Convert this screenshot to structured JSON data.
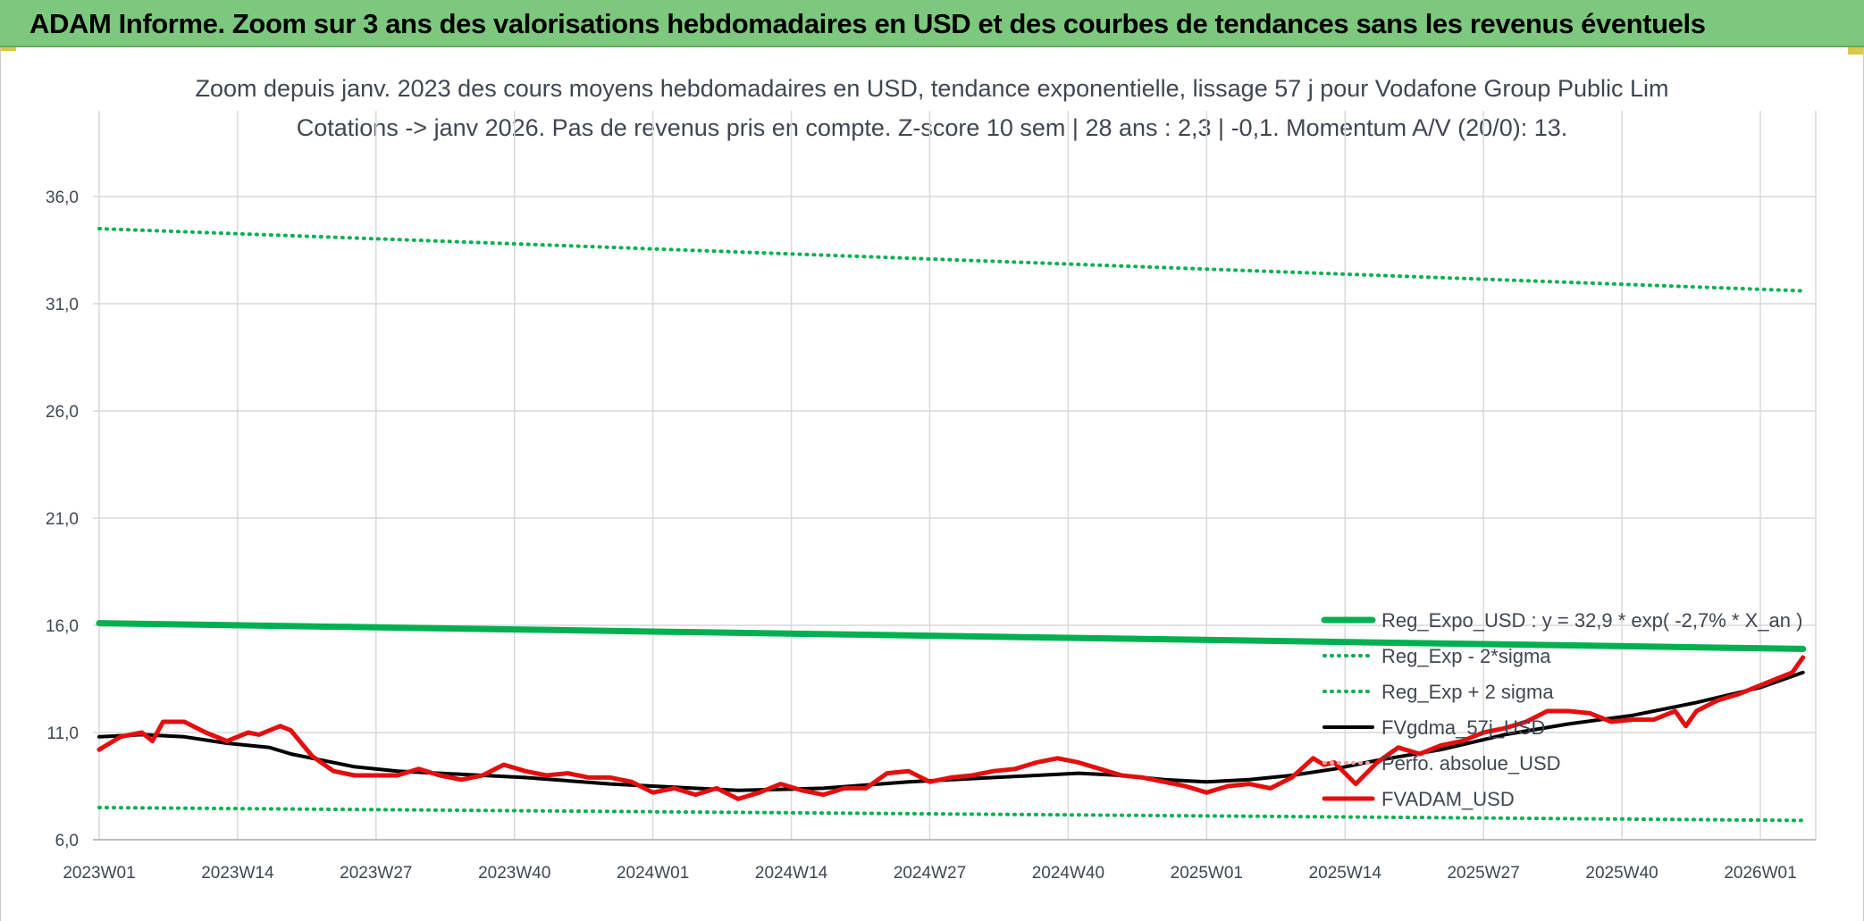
{
  "banner": {
    "title": "ADAM Informe. Zoom sur 3 ans des valorisations hebdomadaires en USD et des courbes de tendances sans les revenus éventuels"
  },
  "chart_data": {
    "type": "line",
    "title": "Zoom depuis janv. 2023 des cours moyens hebdomadaires en USD, tendance exponentielle, lissage 57 j pour Vodafone Group Public Lim",
    "subtitle": "Cotations -> janv 2026. Pas de revenus pris en compte. Z-score 10 sem | 28 ans : 2,3 | -0,1. Momentum A/V (20/0): 13.",
    "xlabel": "",
    "ylabel": "",
    "ylim": [
      6.0,
      38.0
    ],
    "y_ticks": [
      "6,0",
      "11,0",
      "16,0",
      "21,0",
      "26,0",
      "31,0",
      "36,0"
    ],
    "x_ticks": [
      {
        "week": 0,
        "label": "2023W01"
      },
      {
        "week": 13,
        "label": "2023W14"
      },
      {
        "week": 26,
        "label": "2023W27"
      },
      {
        "week": 39,
        "label": "2023W40"
      },
      {
        "week": 52,
        "label": "2024W01"
      },
      {
        "week": 65,
        "label": "2024W14"
      },
      {
        "week": 78,
        "label": "2024W27"
      },
      {
        "week": 91,
        "label": "2024W40"
      },
      {
        "week": 104,
        "label": "2025W01"
      },
      {
        "week": 117,
        "label": "2025W14"
      },
      {
        "week": 130,
        "label": "2025W27"
      },
      {
        "week": 143,
        "label": "2025W40"
      },
      {
        "week": 156,
        "label": "2026W01"
      }
    ],
    "x_range_weeks": [
      0,
      161
    ],
    "grid": true,
    "legend_position": "right-bottom",
    "series": [
      {
        "name": "Reg_Expo_USD : y = 32,9 * exp( -2,7% *  X_an )",
        "color": "#00b050",
        "style": "solid",
        "width": 7,
        "points": [
          [
            0,
            16.1
          ],
          [
            160,
            14.9
          ]
        ]
      },
      {
        "name": "Reg_Exp - 2*sigma",
        "color": "#00b050",
        "style": "dotted",
        "width": 4,
        "points": [
          [
            0,
            7.5
          ],
          [
            160,
            6.9
          ]
        ]
      },
      {
        "name": "Reg_Exp + 2 sigma",
        "color": "#00b050",
        "style": "dotted",
        "width": 4,
        "points": [
          [
            0,
            34.5
          ],
          [
            160,
            31.6
          ]
        ]
      },
      {
        "name": "FVgdma_57j_USD",
        "color": "#000000",
        "style": "solid",
        "width": 4,
        "points": [
          [
            0,
            10.8
          ],
          [
            4,
            10.9
          ],
          [
            8,
            10.8
          ],
          [
            12,
            10.5
          ],
          [
            16,
            10.3
          ],
          [
            18,
            10.0
          ],
          [
            20,
            9.8
          ],
          [
            24,
            9.4
          ],
          [
            28,
            9.2
          ],
          [
            32,
            9.1
          ],
          [
            40,
            8.9
          ],
          [
            48,
            8.6
          ],
          [
            52,
            8.5
          ],
          [
            60,
            8.3
          ],
          [
            68,
            8.4
          ],
          [
            76,
            8.7
          ],
          [
            84,
            8.9
          ],
          [
            88,
            9.0
          ],
          [
            92,
            9.1
          ],
          [
            96,
            9.0
          ],
          [
            100,
            8.8
          ],
          [
            104,
            8.7
          ],
          [
            108,
            8.8
          ],
          [
            112,
            9.0
          ],
          [
            116,
            9.3
          ],
          [
            120,
            9.7
          ],
          [
            126,
            10.2
          ],
          [
            132,
            10.9
          ],
          [
            138,
            11.4
          ],
          [
            144,
            11.8
          ],
          [
            150,
            12.4
          ],
          [
            156,
            13.1
          ],
          [
            160,
            13.8
          ]
        ]
      },
      {
        "name": "Perfo. absolue_USD",
        "color": "#f4a0a0",
        "style": "dotted",
        "width": 4,
        "points": []
      },
      {
        "name": "FVADAM_USD",
        "color": "#e30f0f",
        "style": "solid",
        "width": 5,
        "points": [
          [
            0,
            10.2
          ],
          [
            2,
            10.8
          ],
          [
            4,
            11.0
          ],
          [
            5,
            10.6
          ],
          [
            6,
            11.5
          ],
          [
            8,
            11.5
          ],
          [
            10,
            11.0
          ],
          [
            12,
            10.6
          ],
          [
            14,
            11.0
          ],
          [
            15,
            10.9
          ],
          [
            17,
            11.3
          ],
          [
            18,
            11.1
          ],
          [
            20,
            9.9
          ],
          [
            22,
            9.2
          ],
          [
            24,
            9.0
          ],
          [
            28,
            9.0
          ],
          [
            30,
            9.3
          ],
          [
            32,
            9.0
          ],
          [
            34,
            8.8
          ],
          [
            36,
            9.0
          ],
          [
            38,
            9.5
          ],
          [
            40,
            9.2
          ],
          [
            42,
            9.0
          ],
          [
            44,
            9.1
          ],
          [
            46,
            8.9
          ],
          [
            48,
            8.9
          ],
          [
            50,
            8.7
          ],
          [
            52,
            8.2
          ],
          [
            54,
            8.4
          ],
          [
            56,
            8.1
          ],
          [
            58,
            8.4
          ],
          [
            60,
            7.9
          ],
          [
            62,
            8.2
          ],
          [
            64,
            8.6
          ],
          [
            66,
            8.3
          ],
          [
            68,
            8.1
          ],
          [
            70,
            8.4
          ],
          [
            72,
            8.4
          ],
          [
            74,
            9.1
          ],
          [
            76,
            9.2
          ],
          [
            78,
            8.7
          ],
          [
            80,
            8.9
          ],
          [
            82,
            9.0
          ],
          [
            84,
            9.2
          ],
          [
            86,
            9.3
          ],
          [
            88,
            9.6
          ],
          [
            90,
            9.8
          ],
          [
            92,
            9.6
          ],
          [
            94,
            9.3
          ],
          [
            96,
            9.0
          ],
          [
            98,
            8.9
          ],
          [
            100,
            8.7
          ],
          [
            102,
            8.5
          ],
          [
            104,
            8.2
          ],
          [
            106,
            8.5
          ],
          [
            108,
            8.6
          ],
          [
            110,
            8.4
          ],
          [
            112,
            8.9
          ],
          [
            114,
            9.8
          ],
          [
            115,
            9.5
          ],
          [
            116,
            9.6
          ],
          [
            118,
            8.6
          ],
          [
            120,
            9.6
          ],
          [
            122,
            10.3
          ],
          [
            124,
            10.0
          ],
          [
            126,
            10.4
          ],
          [
            128,
            10.6
          ],
          [
            130,
            11.0
          ],
          [
            132,
            11.2
          ],
          [
            134,
            11.5
          ],
          [
            136,
            12.0
          ],
          [
            138,
            12.0
          ],
          [
            140,
            11.9
          ],
          [
            142,
            11.5
          ],
          [
            144,
            11.6
          ],
          [
            146,
            11.6
          ],
          [
            148,
            12.0
          ],
          [
            149,
            11.3
          ],
          [
            150,
            12.0
          ],
          [
            152,
            12.5
          ],
          [
            154,
            12.8
          ],
          [
            156,
            13.2
          ],
          [
            158,
            13.6
          ],
          [
            159,
            13.8
          ],
          [
            160,
            14.5
          ]
        ]
      }
    ]
  }
}
